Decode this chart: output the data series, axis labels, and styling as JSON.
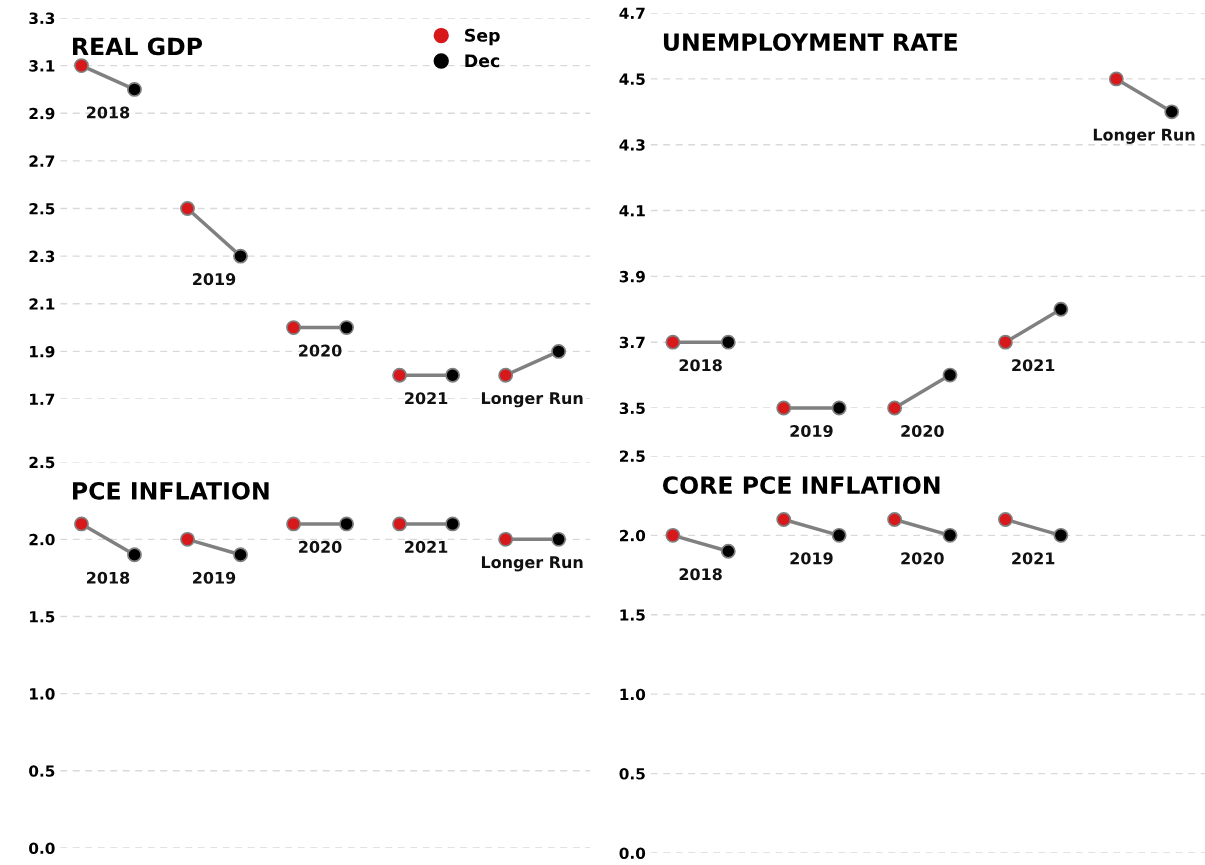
{
  "chart_data": [
    {
      "type": "scatter",
      "title": "REAL GDP",
      "categories": [
        "2018",
        "2019",
        "2020",
        "2021",
        "Longer Run"
      ],
      "series": [
        {
          "name": "Sep",
          "color": "#d7191c",
          "values": [
            3.1,
            2.5,
            2.0,
            1.8,
            1.8
          ]
        },
        {
          "name": "Dec",
          "color": "#000000",
          "values": [
            3.0,
            2.3,
            2.0,
            1.8,
            1.9
          ]
        }
      ],
      "ylim": [
        1.7,
        3.3
      ],
      "yticks": [
        1.7,
        1.9,
        2.1,
        2.3,
        2.5,
        2.7,
        2.9,
        3.1,
        3.3
      ],
      "grid": "y",
      "tick_labels": "y",
      "legend": "top right",
      "marker": "circle"
    },
    {
      "type": "scatter",
      "title": "UNEMPLOYMENT RATE",
      "categories": [
        "2018",
        "2019",
        "2020",
        "2021",
        "Longer Run"
      ],
      "series": [
        {
          "color": "#d7191c",
          "values": [
            3.7,
            3.5,
            3.5,
            3.7,
            4.5
          ]
        },
        {
          "color": "#000000",
          "values": [
            3.7,
            3.5,
            3.6,
            3.8,
            4.4
          ]
        }
      ],
      "ylim": [
        3.5,
        4.7
      ],
      "yticks": [
        3.5,
        3.7,
        3.9,
        4.1,
        4.3,
        4.5,
        4.7
      ],
      "grid": "y",
      "tick_labels": "y",
      "marker": "circle"
    },
    {
      "type": "scatter",
      "title": "PCE INFLATION",
      "categories": [
        "2018",
        "2019",
        "2020",
        "2021",
        "Longer Run"
      ],
      "series": [
        {
          "color": "#d7191c",
          "values": [
            2.1,
            2.0,
            2.1,
            2.1,
            2.0
          ]
        },
        {
          "color": "#000000",
          "values": [
            1.9,
            1.9,
            2.1,
            2.1,
            2.0
          ]
        }
      ],
      "ylim": [
        0,
        2.5
      ],
      "yticks": [
        {
          "value": 0,
          "label": "0.0"
        },
        0.5,
        {
          "value": 1,
          "label": "1.0"
        },
        1.5,
        {
          "value": 2,
          "label": "2.0"
        },
        2.5
      ],
      "grid": "y",
      "tick_labels": "y",
      "marker": "circle"
    },
    {
      "type": "scatter",
      "title": "CORE PCE INFLATION",
      "categories": [
        "2018",
        "2019",
        "2020",
        "2021"
      ],
      "series": [
        {
          "color": "#d7191c",
          "values": [
            2.0,
            2.1,
            2.1,
            2.1
          ]
        },
        {
          "color": "#000000",
          "values": [
            1.9,
            2.0,
            2.0,
            2.0
          ]
        }
      ],
      "ylim": [
        0,
        2.5
      ],
      "yticks": [
        {
          "value": 0,
          "label": "0.0"
        },
        0.5,
        {
          "value": 1,
          "label": "1.0"
        },
        1.5,
        {
          "value": 2,
          "label": "2.0"
        },
        2.5
      ],
      "grid": "y",
      "tick_labels": "y",
      "marker": "circle"
    }
  ]
}
